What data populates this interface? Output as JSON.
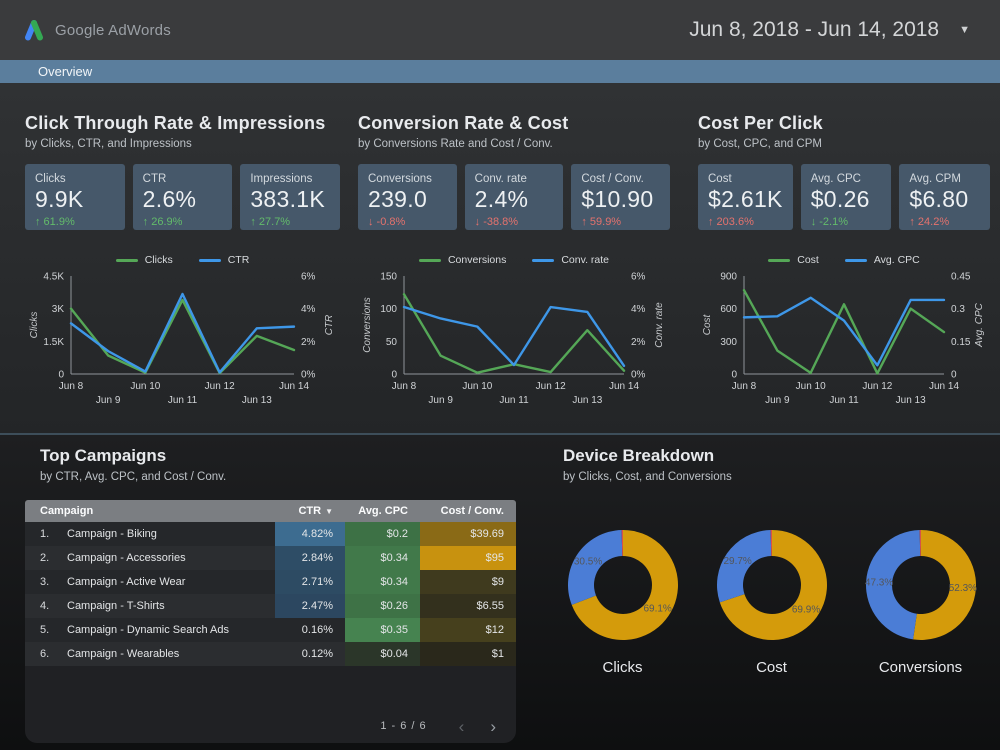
{
  "header": {
    "brand": "Google AdWords",
    "date_range": "Jun 8, 2018 - Jun 14, 2018"
  },
  "tabbar": {
    "label": "Overview"
  },
  "colors": {
    "tab_bar": "#5b7e9d",
    "scorecard_bg": "#46586a",
    "series_green": "#55a757",
    "series_blue": "#3e97e8",
    "delta_good": "#63bb6a",
    "delta_bad": "#e4726d",
    "donut_gold": "#d49b0b",
    "donut_blue": "#4b7dd6",
    "donut_red": "#d6524a",
    "table_header_bg": "#7b7e82"
  },
  "sections": [
    {
      "title": "Click Through Rate & Impressions",
      "subtitle": "by Clicks, CTR, and Impressions",
      "cards": [
        {
          "label": "Clicks",
          "value": "9.9K",
          "delta": "61.9%",
          "direction": "up",
          "tone": "good"
        },
        {
          "label": "CTR",
          "value": "2.6%",
          "delta": "26.9%",
          "direction": "up",
          "tone": "good"
        },
        {
          "label": "Impressions",
          "value": "383.1K",
          "delta": "27.7%",
          "direction": "up",
          "tone": "good"
        }
      ]
    },
    {
      "title": "Conversion Rate & Cost",
      "subtitle": "by Conversions Rate and Cost / Conv.",
      "cards": [
        {
          "label": "Conversions",
          "value": "239.0",
          "delta": "-0.8%",
          "direction": "down",
          "tone": "bad"
        },
        {
          "label": "Conv. rate",
          "value": "2.4%",
          "delta": "-38.8%",
          "direction": "down",
          "tone": "bad"
        },
        {
          "label": "Cost / Conv.",
          "value": "$10.90",
          "delta": "59.9%",
          "direction": "up",
          "tone": "bad"
        }
      ]
    },
    {
      "title": "Cost Per Click",
      "subtitle": "by Cost, CPC, and CPM",
      "cards": [
        {
          "label": "Cost",
          "value": "$2.61K",
          "delta": "203.6%",
          "direction": "up",
          "tone": "bad"
        },
        {
          "label": "Avg. CPC",
          "value": "$0.26",
          "delta": "-2.1%",
          "direction": "down",
          "tone": "good"
        },
        {
          "label": "Avg. CPM",
          "value": "$6.80",
          "delta": "24.2%",
          "direction": "up",
          "tone": "bad"
        }
      ]
    }
  ],
  "chart_data": [
    {
      "type": "line",
      "x": [
        "Jun 8",
        "Jun 9",
        "Jun 10",
        "Jun 11",
        "Jun 12",
        "Jun 13",
        "Jun 14"
      ],
      "left_axis": {
        "title": "Clicks",
        "ticks": [
          "0",
          "1.5K",
          "3K",
          "4.5K"
        ],
        "max": 4500
      },
      "right_axis": {
        "title": "CTR",
        "ticks": [
          "0%",
          "2%",
          "4%",
          "6%"
        ],
        "max": 6
      },
      "series": [
        {
          "name": "Clicks",
          "axis": "left",
          "color": "#55a757",
          "values": [
            3000,
            850,
            60,
            3400,
            40,
            1750,
            1100
          ]
        },
        {
          "name": "CTR",
          "axis": "right",
          "color": "#3e97e8",
          "values": [
            3.1,
            1.4,
            0.15,
            4.9,
            0.1,
            2.8,
            2.9
          ]
        }
      ]
    },
    {
      "type": "line",
      "x": [
        "Jun 8",
        "Jun 9",
        "Jun 10",
        "Jun 11",
        "Jun 12",
        "Jun 13",
        "Jun 14"
      ],
      "left_axis": {
        "title": "Conversions",
        "ticks": [
          "0",
          "50",
          "100",
          "150"
        ],
        "max": 150
      },
      "right_axis": {
        "title": "Conv. rate",
        "ticks": [
          "0%",
          "2%",
          "4%",
          "6%"
        ],
        "max": 6
      },
      "series": [
        {
          "name": "Conversions",
          "axis": "left",
          "color": "#55a757",
          "values": [
            122,
            28,
            2,
            15,
            3,
            67,
            5
          ]
        },
        {
          "name": "Conv. rate",
          "axis": "right",
          "color": "#3e97e8",
          "values": [
            4.1,
            3.4,
            2.9,
            0.55,
            4.1,
            3.8,
            0.5
          ]
        }
      ]
    },
    {
      "type": "line",
      "x": [
        "Jun 8",
        "Jun 9",
        "Jun 10",
        "Jun 11",
        "Jun 12",
        "Jun 13",
        "Jun 14"
      ],
      "left_axis": {
        "title": "Cost",
        "ticks": [
          "0",
          "300",
          "600",
          "900"
        ],
        "max": 900
      },
      "right_axis": {
        "title": "Avg. CPC",
        "ticks": [
          "0",
          "0.15",
          "0.3",
          "0.45"
        ],
        "max": 0.45
      },
      "series": [
        {
          "name": "Cost",
          "axis": "left",
          "color": "#55a757",
          "values": [
            770,
            215,
            10,
            640,
            5,
            600,
            385
          ]
        },
        {
          "name": "Avg. CPC",
          "axis": "right",
          "color": "#3e97e8",
          "values": [
            0.26,
            0.265,
            0.35,
            0.245,
            0.04,
            0.34,
            0.34
          ]
        }
      ]
    },
    {
      "type": "pie",
      "title": "Clicks",
      "slices": [
        {
          "label": "69.1%",
          "value": 69.1,
          "color": "#d49b0b"
        },
        {
          "label": "30.5%",
          "value": 30.5,
          "color": "#4b7dd6"
        },
        {
          "label": "",
          "value": 0.4,
          "color": "#d6524a"
        }
      ]
    },
    {
      "type": "pie",
      "title": "Cost",
      "slices": [
        {
          "label": "69.9%",
          "value": 69.9,
          "color": "#d49b0b"
        },
        {
          "label": "29.7%",
          "value": 29.7,
          "color": "#4b7dd6"
        },
        {
          "label": "",
          "value": 0.4,
          "color": "#d6524a"
        }
      ]
    },
    {
      "type": "pie",
      "title": "Conversions",
      "slices": [
        {
          "label": "52.3%",
          "value": 52.3,
          "color": "#d49b0b"
        },
        {
          "label": "47.3%",
          "value": 47.3,
          "color": "#4b7dd6"
        },
        {
          "label": "",
          "value": 0.4,
          "color": "#d6524a"
        }
      ]
    }
  ],
  "campaigns": {
    "title": "Top Campaigns",
    "subtitle": "by CTR, Avg. CPC, and Cost / Conv.",
    "columns": [
      "Campaign",
      "CTR",
      "Avg. CPC",
      "Cost / Conv."
    ],
    "sort_column": "CTR",
    "rows": [
      {
        "rank": "1.",
        "name": "Campaign - Biking",
        "ctr": "4.82%",
        "ctr_bg": "#3d6c90",
        "cpc": "$0.2",
        "cpc_bg": "#3d7145",
        "cost": "$39.69",
        "cost_bg": "#8a6a16"
      },
      {
        "rank": "2.",
        "name": "Campaign - Accessories",
        "ctr": "2.84%",
        "ctr_bg": "#2e4d66",
        "cpc": "$0.34",
        "cpc_bg": "#41794a",
        "cost": "$95",
        "cost_bg": "#c8920f"
      },
      {
        "rank": "3.",
        "name": "Campaign - Active Wear",
        "ctr": "2.71%",
        "ctr_bg": "#2d4b63",
        "cpc": "$0.34",
        "cpc_bg": "#41794a",
        "cost": "$9",
        "cost_bg": "#3f3a1e"
      },
      {
        "rank": "4.",
        "name": "Campaign - T-Shirts",
        "ctr": "2.47%",
        "ctr_bg": "#2c4760",
        "cpc": "$0.26",
        "cpc_bg": "#3e7246",
        "cost": "$6.55",
        "cost_bg": "#33301d"
      },
      {
        "rank": "5.",
        "name": "Campaign - Dynamic Search Ads",
        "ctr": "0.16%",
        "ctr_bg": "",
        "cpc": "$0.35",
        "cpc_bg": "#468350",
        "cost": "$12",
        "cost_bg": "#46401d"
      },
      {
        "rank": "6.",
        "name": "Campaign - Wearables",
        "ctr": "0.12%",
        "ctr_bg": "",
        "cpc": "$0.04",
        "cpc_bg": "#2b3629",
        "cost": "$1",
        "cost_bg": "#2a281b"
      }
    ],
    "pagination": {
      "label": "1 - 6 / 6"
    }
  },
  "devices": {
    "title": "Device Breakdown",
    "subtitle": "by Clicks, Cost, and Conversions"
  }
}
